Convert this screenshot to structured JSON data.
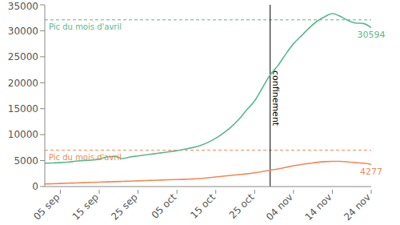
{
  "chart_data": {
    "type": "line",
    "categories": [
      null,
      null,
      "05 sep",
      null,
      null,
      null,
      null,
      "15 sep",
      null,
      null,
      null,
      null,
      "25 sep",
      null,
      null,
      null,
      null,
      "05 oct",
      null,
      null,
      null,
      null,
      "15 oct",
      null,
      null,
      null,
      null,
      "25 oct",
      null,
      null,
      null,
      null,
      "04 nov",
      null,
      null,
      null,
      null,
      "14 nov",
      null,
      null,
      null,
      null,
      "24 nov"
    ],
    "series": [
      {
        "color": "#5ab88f",
        "values": [
          4500,
          4550,
          4600,
          4700,
          4900,
          5000,
          5100,
          5300,
          5700,
          5800,
          5400,
          5700,
          5900,
          6100,
          6300,
          6500,
          6700,
          6900,
          7200,
          7500,
          7900,
          8500,
          9300,
          10300,
          11500,
          13000,
          14800,
          16500,
          19000,
          21500,
          23300,
          25500,
          27500,
          29000,
          30500,
          31800,
          32700,
          33300,
          32800,
          32000,
          31500,
          31400,
          30594
        ]
      },
      {
        "color": "#f08a55",
        "values": [
          500,
          550,
          600,
          650,
          700,
          750,
          800,
          850,
          900,
          950,
          1000,
          1050,
          1100,
          1150,
          1200,
          1250,
          1300,
          1350,
          1400,
          1450,
          1550,
          1700,
          1850,
          2000,
          2150,
          2300,
          2450,
          2650,
          2900,
          3150,
          3400,
          3700,
          4000,
          4250,
          4450,
          4650,
          4800,
          4850,
          4850,
          4750,
          4600,
          4500,
          4277
        ]
      }
    ],
    "ylim": [
      0,
      35000
    ],
    "yticks": [
      0,
      5000,
      10000,
      15000,
      20000,
      25000,
      30000,
      35000
    ],
    "grid": false,
    "reference_lines": [
      {
        "y": 32100,
        "label": "Pic du mois d'avril",
        "color": "#5ab88f",
        "line_style": "dashed"
      },
      {
        "y": 7000,
        "label": "Pic du mois d'avril",
        "color": "#f08a55",
        "line_style": "dashed"
      }
    ],
    "vertical_lines": [
      {
        "position": 29,
        "label": "confinement",
        "color": "#000000"
      }
    ],
    "annotations": [
      {
        "position": 42,
        "y": 30594,
        "text": "30594",
        "color": "#5ab88f"
      },
      {
        "position": 42,
        "y": 4277,
        "text": "4277",
        "color": "#f08a55"
      }
    ]
  }
}
